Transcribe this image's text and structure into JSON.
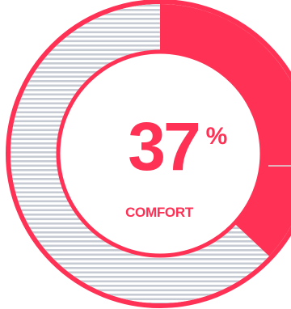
{
  "chart_data": {
    "type": "pie",
    "value_percent": 37,
    "value_text": "37",
    "unit": "%",
    "label": "COMFORT",
    "segments": [
      {
        "value": 37,
        "color": "#ff3155",
        "fill": "solid"
      },
      {
        "value": 63,
        "color": "#c5cad3",
        "fill": "horizontal-stripes"
      }
    ]
  },
  "colors": {
    "accent": "#ff3155",
    "stripe": "#c5cad3",
    "background": "#ffffff"
  }
}
